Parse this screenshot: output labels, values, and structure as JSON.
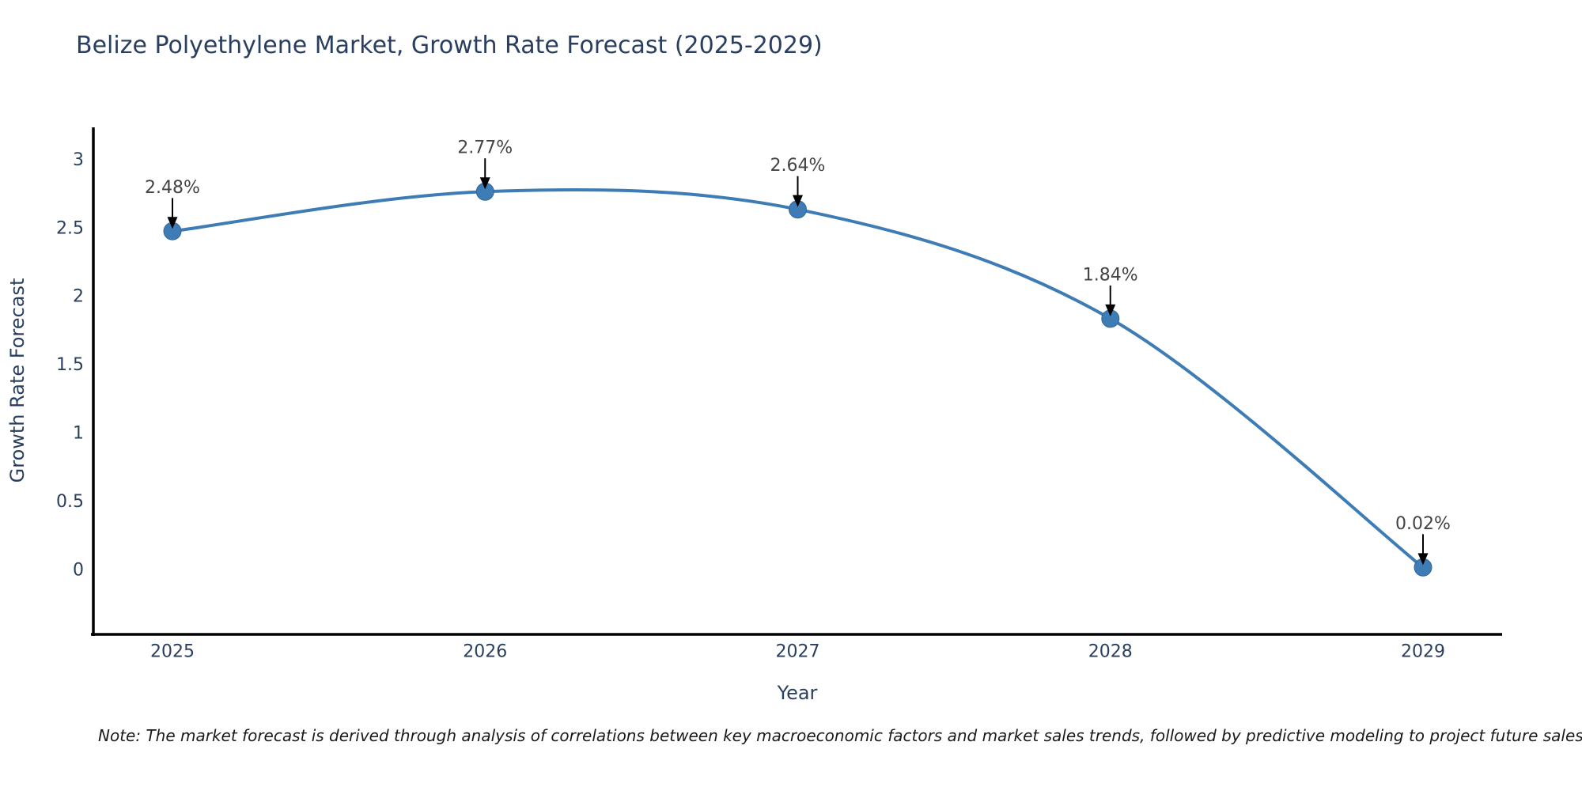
{
  "title": "Belize Polyethylene Market, Growth Rate Forecast (2025-2029)",
  "note": "Note: The market forecast is derived through analysis of correlations between key macroeconomic factors and market sales trends, followed by predictive modeling to project future sales",
  "chart_data": {
    "type": "line",
    "title": "Belize Polyethylene Market, Growth Rate Forecast (2025-2029)",
    "x": [
      2025,
      2026,
      2027,
      2028,
      2029
    ],
    "xticks": [
      "2025",
      "2026",
      "2027",
      "2028",
      "2029"
    ],
    "series": [
      {
        "name": "Growth Rate Forecast",
        "values": [
          2.48,
          2.77,
          2.64,
          1.84,
          0.02
        ]
      }
    ],
    "point_labels": [
      "2.48%",
      "2.77%",
      "2.64%",
      "1.84%",
      "0.02%"
    ],
    "xlabel": "Year",
    "ylabel": "Growth Rate Forecast",
    "yticks": [
      0,
      0.5,
      1,
      1.5,
      2,
      2.5,
      3
    ],
    "ylim": [
      -0.47,
      3.24
    ],
    "line_shape": "spline",
    "grid": false,
    "legend_position": "none",
    "colors": {
      "line": "#3E7CB6",
      "marker": "#3E7CB6",
      "marker_edge": "#33669a",
      "axis_line": "#000000",
      "axis_text": "#2a3f5f",
      "annotation_text": "#444444",
      "arrow": "#000000",
      "title_text": "#2a3f5f"
    }
  }
}
